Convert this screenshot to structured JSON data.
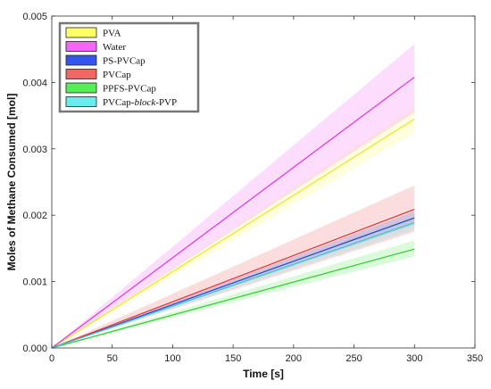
{
  "chart_data": {
    "type": "line",
    "title": "",
    "xlabel": "Time [s]",
    "ylabel": "Moles of Methane Consumed [mol]",
    "xlim": [
      0,
      350
    ],
    "ylim": [
      0,
      0.005
    ],
    "x_ticks": [
      0,
      50,
      100,
      150,
      200,
      250,
      300,
      350
    ],
    "x_tick_labels": [
      "0",
      "50",
      "100",
      "150",
      "200",
      "250",
      "300",
      "350"
    ],
    "y_ticks": [
      0,
      0.001,
      0.002,
      0.003,
      0.004,
      0.005
    ],
    "y_tick_labels": [
      "0.000",
      "0.001",
      "0.002",
      "0.003",
      "0.004",
      "0.005"
    ],
    "grid": false,
    "legend_position": "top-left",
    "series": [
      {
        "name": "PVA",
        "legend_label": {
          "prefix": "PVA",
          "italic": "",
          "suffix": ""
        },
        "color": "#E6E619",
        "fill_color": "#FFFF66",
        "x": [
          0,
          300
        ],
        "y": [
          0,
          0.00345
        ],
        "band_lower": [
          0,
          0.00325
        ],
        "band_upper": [
          0,
          0.00362
        ]
      },
      {
        "name": "Water",
        "legend_label": {
          "prefix": "Water",
          "italic": "",
          "suffix": ""
        },
        "color": "#E62EE6",
        "fill_color": "#F566F5",
        "x": [
          0,
          300
        ],
        "y": [
          0,
          0.00408
        ],
        "band_lower": [
          0,
          0.00355
        ],
        "band_upper": [
          0,
          0.00458
        ]
      },
      {
        "name": "PS-PVCap",
        "legend_label": {
          "prefix": "PS-PVCap",
          "italic": "",
          "suffix": ""
        },
        "color": "#2B3FD6",
        "fill_color": "#3355EE",
        "x": [
          0,
          300
        ],
        "y": [
          0,
          0.00196
        ],
        "band_lower": [
          0,
          0.00186
        ],
        "band_upper": [
          0,
          0.00206
        ]
      },
      {
        "name": "PVCap",
        "legend_label": {
          "prefix": "PVCap",
          "italic": "",
          "suffix": ""
        },
        "color": "#E62E2E",
        "fill_color": "#F26666",
        "x": [
          0,
          300
        ],
        "y": [
          0,
          0.00209
        ],
        "band_lower": [
          0,
          0.00175
        ],
        "band_upper": [
          0,
          0.00245
        ]
      },
      {
        "name": "PPFS-PVCap",
        "legend_label": {
          "prefix": "PPFS-PVCap",
          "italic": "",
          "suffix": ""
        },
        "color": "#2ECC2E",
        "fill_color": "#55EE55",
        "x": [
          0,
          300
        ],
        "y": [
          0,
          0.00149
        ],
        "band_lower": [
          0,
          0.00138
        ],
        "band_upper": [
          0,
          0.00162
        ]
      },
      {
        "name": "PVCap-block-PVP",
        "legend_label": {
          "prefix": "PVCap-",
          "italic": "block",
          "suffix": "-PVP"
        },
        "color": "#33C9D6",
        "fill_color": "#66EEEE",
        "x": [
          0,
          300
        ],
        "y": [
          0,
          0.00189
        ],
        "band_lower": [
          0,
          0.00178
        ],
        "band_upper": [
          0,
          0.002
        ]
      }
    ]
  }
}
